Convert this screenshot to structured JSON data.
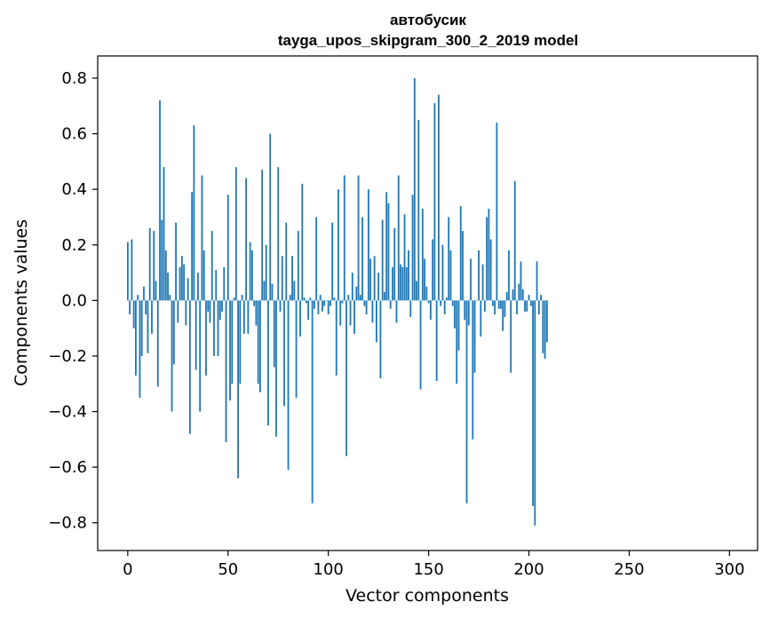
{
  "chart_data": {
    "type": "bar",
    "title_line1": "автобусик",
    "title_line2": "tayga_upos_skipgram_300_2_2019 model",
    "xlabel": "Vector components",
    "ylabel": "Components values",
    "xlim": [
      -15,
      314
    ],
    "ylim": [
      -0.9,
      0.88
    ],
    "xticks": [
      0,
      50,
      100,
      150,
      200,
      250,
      300
    ],
    "yticks": [
      -0.8,
      -0.6,
      -0.4,
      -0.2,
      0.0,
      0.2,
      0.4,
      0.6,
      0.8
    ],
    "ytick_labels": [
      "−0.8",
      "−0.6",
      "−0.4",
      "−0.2",
      "0.0",
      "0.2",
      "0.4",
      "0.6",
      "0.8"
    ],
    "grid": false,
    "bar_color": "#1f77b4",
    "values": [
      0.21,
      -0.05,
      0.22,
      -0.1,
      -0.27,
      0.02,
      -0.35,
      -0.2,
      0.05,
      -0.05,
      -0.19,
      0.26,
      -0.12,
      0.25,
      0.07,
      -0.31,
      0.72,
      0.29,
      0.48,
      0.18,
      0.1,
      0.02,
      -0.4,
      -0.23,
      0.28,
      -0.08,
      0.12,
      0.16,
      0.13,
      -0.09,
      0.08,
      -0.48,
      0.39,
      0.63,
      -0.25,
      0.1,
      -0.4,
      0.45,
      0.18,
      -0.27,
      -0.04,
      -0.08,
      0.25,
      -0.2,
      0.11,
      -0.2,
      -0.07,
      -0.04,
      0.12,
      -0.51,
      0.38,
      -0.36,
      -0.3,
      0.01,
      0.48,
      -0.64,
      -0.3,
      0.02,
      -0.12,
      0.44,
      -0.12,
      0.21,
      0.18,
      -0.02,
      -0.09,
      -0.3,
      -0.33,
      0.47,
      0.07,
      0.2,
      -0.45,
      0.6,
      0.06,
      -0.24,
      -0.49,
      0.48,
      -0.04,
      0.16,
      -0.38,
      0.28,
      -0.61,
      0.02,
      0.16,
      0.07,
      -0.35,
      0.25,
      -0.13,
      0.42,
      0.01,
      -0.01,
      -0.07,
      0.01,
      -0.73,
      -0.03,
      0.3,
      -0.05,
      0.02,
      -0.04,
      -0.02,
      0.0,
      -0.05,
      -0.02,
      0.28,
      0.01,
      -0.27,
      0.4,
      -0.09,
      -0.01,
      0.45,
      -0.56,
      0.02,
      -0.09,
      0.1,
      -0.12,
      0.05,
      0.45,
      0.02,
      0.3,
      -0.02,
      -0.05,
      0.4,
      0.15,
      -0.08,
      0.16,
      -0.15,
      0.1,
      -0.28,
      0.29,
      0.03,
      0.39,
      0.35,
      -0.03,
      0.12,
      0.26,
      -0.08,
      0.45,
      0.13,
      0.12,
      0.31,
      0.12,
      0.18,
      -0.06,
      0.38,
      0.8,
      0.07,
      0.65,
      -0.32,
      0.33,
      0.15,
      0.05,
      -0.01,
      -0.07,
      0.22,
      0.71,
      -0.29,
      0.74,
      -0.02,
      0.2,
      -0.05,
      0.01,
      0.3,
      0.18,
      -0.02,
      -0.1,
      -0.3,
      -0.18,
      0.34,
      0.25,
      -0.07,
      -0.73,
      -0.09,
      0.15,
      -0.5,
      -0.26,
      0.0,
      0.18,
      -0.13,
      0.13,
      -0.04,
      0.3,
      0.33,
      0.22,
      -0.02,
      -0.05,
      0.64,
      -0.03,
      -0.03,
      -0.11,
      -0.06,
      0.03,
      0.18,
      -0.26,
      0.04,
      0.43,
      -0.05,
      0.06,
      0.14,
      0.04,
      -0.04,
      -0.04,
      0.02,
      -0.02,
      -0.74,
      -0.81,
      0.14,
      -0.05,
      0.02,
      -0.19,
      -0.21,
      -0.15
    ]
  }
}
